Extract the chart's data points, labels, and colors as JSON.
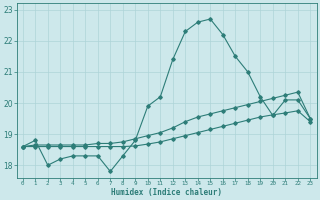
{
  "xlabel": "Humidex (Indice chaleur)",
  "background_color": "#cde8eb",
  "grid_color": "#aed4d8",
  "line_color": "#2d7d78",
  "xlim": [
    -0.5,
    23.5
  ],
  "ylim": [
    17.6,
    23.2
  ],
  "yticks": [
    18,
    19,
    20,
    21,
    22,
    23
  ],
  "xticks": [
    0,
    1,
    2,
    3,
    4,
    5,
    6,
    7,
    8,
    9,
    10,
    11,
    12,
    13,
    14,
    15,
    16,
    17,
    18,
    19,
    20,
    21,
    22,
    23
  ],
  "line1_x": [
    0,
    1,
    2,
    3,
    4,
    5,
    6,
    7,
    8,
    9,
    10,
    11,
    12,
    13,
    14,
    15,
    16,
    17,
    18,
    19,
    20,
    21,
    22,
    23
  ],
  "line1_y": [
    18.6,
    18.8,
    18.0,
    18.2,
    18.3,
    18.3,
    18.3,
    17.8,
    18.3,
    18.8,
    19.9,
    20.2,
    21.4,
    22.3,
    22.6,
    22.7,
    22.2,
    21.5,
    21.0,
    20.2,
    19.6,
    20.1,
    20.1,
    19.5
  ],
  "line2_x": [
    0,
    1,
    2,
    3,
    4,
    5,
    6,
    7,
    8,
    9,
    10,
    11,
    12,
    13,
    14,
    15,
    16,
    17,
    18,
    19,
    20,
    21,
    22,
    23
  ],
  "line2_y": [
    18.6,
    18.65,
    18.65,
    18.65,
    18.65,
    18.65,
    18.7,
    18.7,
    18.75,
    18.85,
    18.95,
    19.05,
    19.2,
    19.4,
    19.55,
    19.65,
    19.75,
    19.85,
    19.95,
    20.05,
    20.15,
    20.25,
    20.35,
    19.5
  ],
  "line3_x": [
    0,
    1,
    2,
    3,
    4,
    5,
    6,
    7,
    8,
    9,
    10,
    11,
    12,
    13,
    14,
    15,
    16,
    17,
    18,
    19,
    20,
    21,
    22,
    23
  ],
  "line3_y": [
    18.6,
    18.6,
    18.6,
    18.6,
    18.6,
    18.6,
    18.6,
    18.6,
    18.6,
    18.62,
    18.68,
    18.75,
    18.85,
    18.95,
    19.05,
    19.15,
    19.25,
    19.35,
    19.45,
    19.55,
    19.62,
    19.68,
    19.75,
    19.4
  ]
}
